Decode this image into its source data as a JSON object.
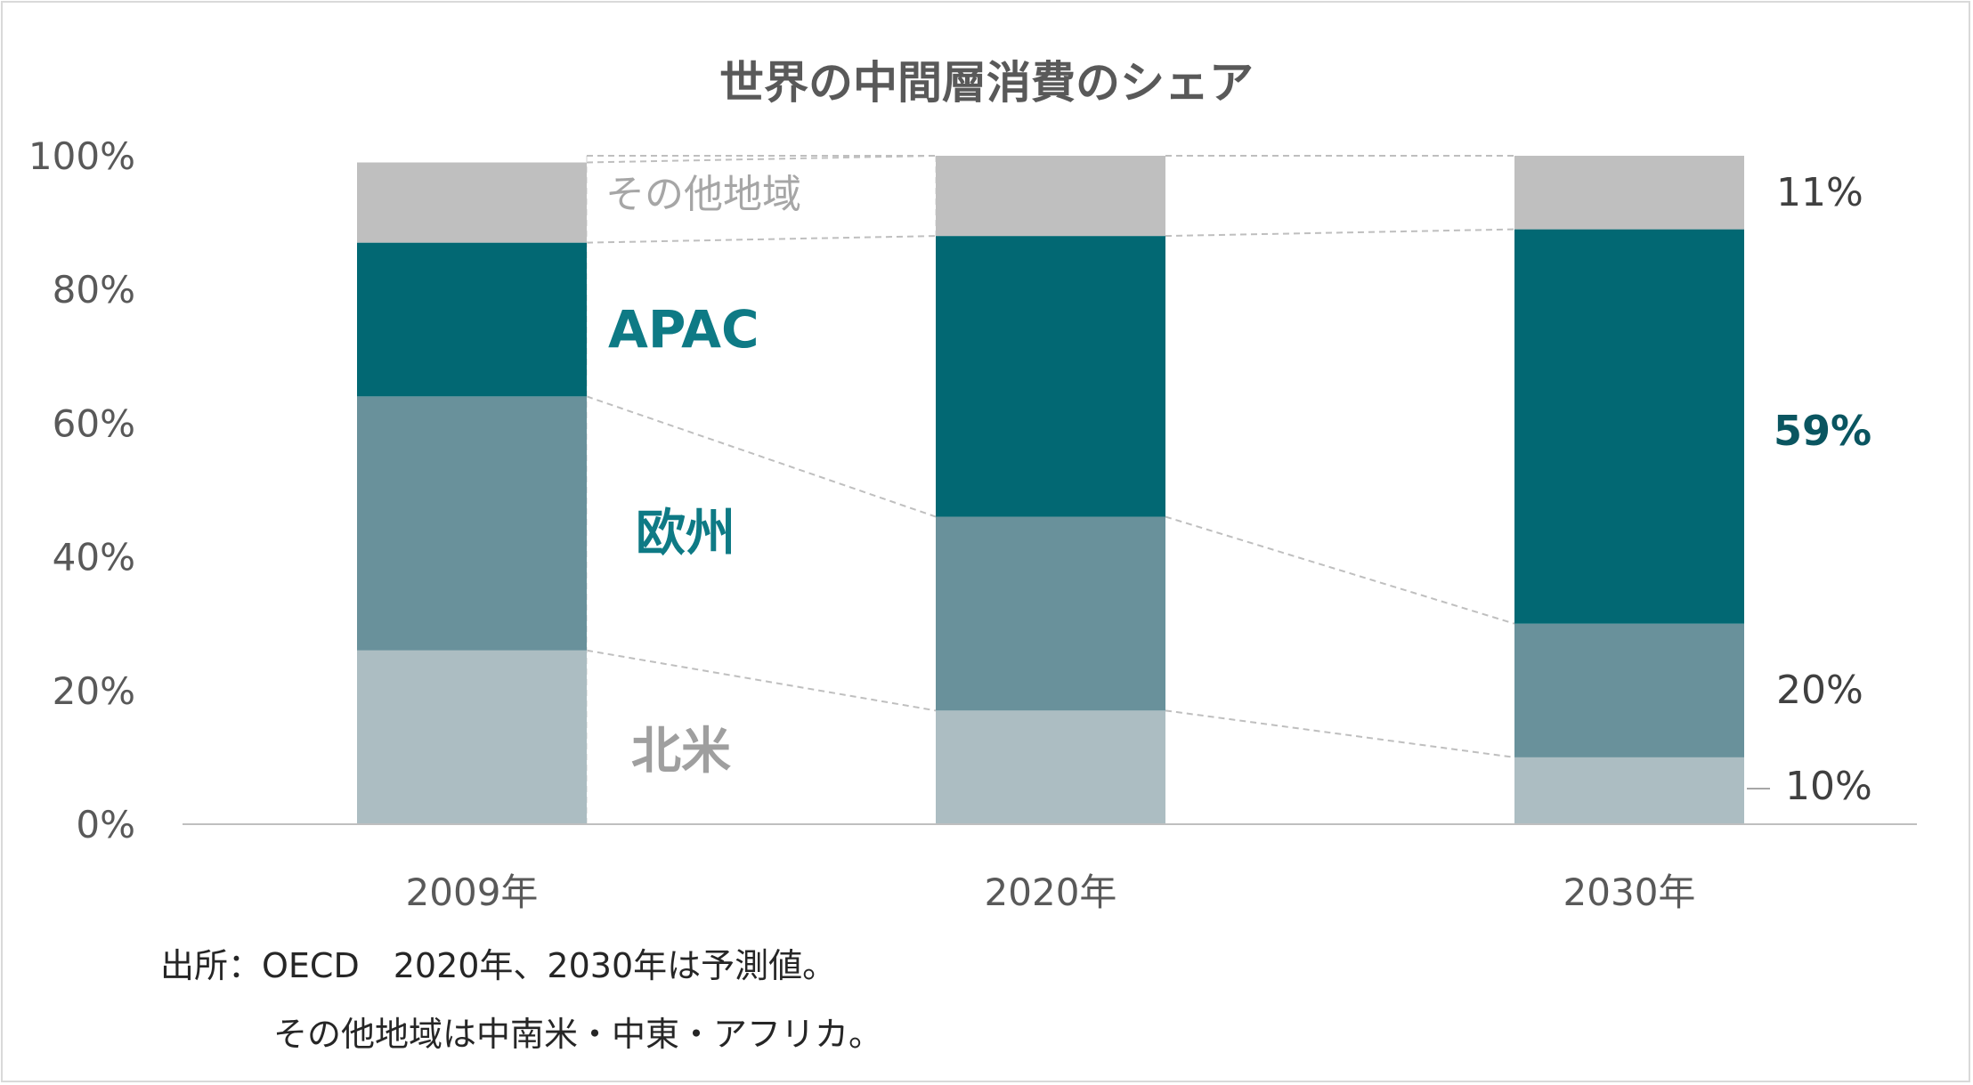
{
  "chart_data": {
    "type": "bar",
    "stacked": true,
    "title": "世界の中間層消費のシェア",
    "categories": [
      "2009年",
      "2020年",
      "2030年"
    ],
    "series": [
      {
        "name": "北米",
        "values": [
          26,
          17,
          10
        ],
        "color": "#acbdc2"
      },
      {
        "name": "欧州",
        "values": [
          38,
          29,
          20
        ],
        "color": "#69919b"
      },
      {
        "name": "APAC",
        "values": [
          23,
          42,
          59
        ],
        "color": "#026873"
      },
      {
        "name": "その他地域",
        "values": [
          12,
          12,
          11
        ],
        "color": "#bfbfbf"
      }
    ],
    "ylim": [
      0,
      100
    ],
    "yticks": [
      "0%",
      "20%",
      "40%",
      "60%",
      "80%",
      "100%"
    ],
    "series_labels": {
      "apac": {
        "text": "APAC",
        "color": "#0e7a85"
      },
      "europe": {
        "text": "欧州",
        "color": "#0e7a85"
      },
      "north_america": {
        "text": "北米",
        "color": "#9f9f9f"
      },
      "other": {
        "text": "その他地域",
        "color": "#a6a6a6"
      }
    },
    "data_labels_2030": {
      "other": "11%",
      "apac": "59%",
      "europe": "20%",
      "north_america": "10%"
    },
    "notes": [
      "出所：OECD　2020年、2030年は予測値。",
      "その他地域は中南米・中東・アフリカ。"
    ]
  }
}
